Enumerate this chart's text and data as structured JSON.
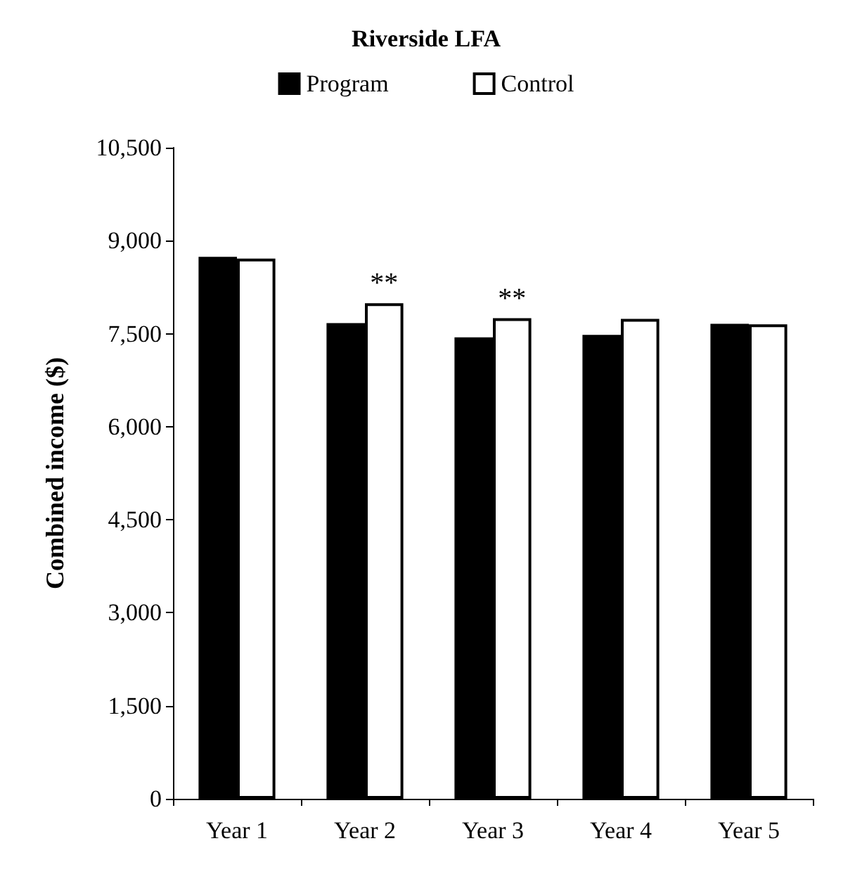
{
  "chart_data": {
    "type": "bar",
    "title": "Riverside LFA",
    "ylabel": "Combined income ($)",
    "categories": [
      "Year 1",
      "Year 2",
      "Year 3",
      "Year 4",
      "Year 5"
    ],
    "series": [
      {
        "name": "Program",
        "color": "#000000",
        "values": [
          8740,
          7670,
          7440,
          7480,
          7660
        ]
      },
      {
        "name": "Control",
        "color": "#ffffff",
        "values": [
          8710,
          7990,
          7750,
          7740,
          7650
        ]
      }
    ],
    "ylim": [
      0,
      10500
    ],
    "yticks": [
      {
        "value": 0,
        "label": "0"
      },
      {
        "value": 1500,
        "label": "1,500"
      },
      {
        "value": 3000,
        "label": "3,000"
      },
      {
        "value": 4500,
        "label": "4,500"
      },
      {
        "value": 6000,
        "label": "6,000"
      },
      {
        "value": 7500,
        "label": "7,500"
      },
      {
        "value": 9000,
        "label": "9,000"
      },
      {
        "value": 10500,
        "label": "10,500"
      }
    ],
    "annotations": [
      {
        "text": "**",
        "x": "Year 2",
        "y": 7990
      },
      {
        "text": "**",
        "x": "Year 3",
        "y": 7750
      }
    ],
    "grid": false,
    "legend": "top"
  }
}
